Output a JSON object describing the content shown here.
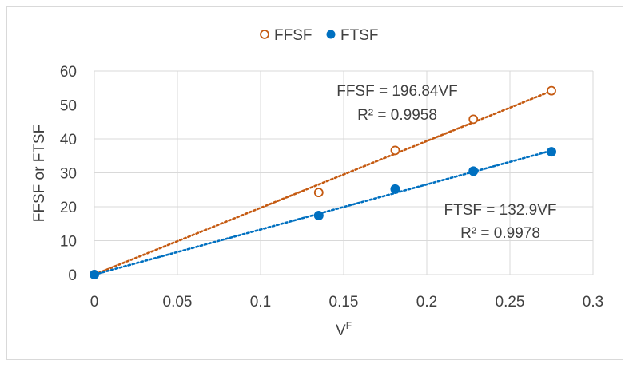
{
  "chart_data": {
    "type": "scatter",
    "title": "",
    "xlabel": "V",
    "xlabel_superscript": "F",
    "ylabel": "FFSF or FTSF",
    "xlim": [
      0,
      0.3
    ],
    "ylim": [
      0,
      60
    ],
    "x_ticks": [
      "0",
      "0.05",
      "0.1",
      "0.15",
      "0.2",
      "0.25",
      "0.3"
    ],
    "y_ticks": [
      "0",
      "10",
      "20",
      "30",
      "40",
      "50",
      "60"
    ],
    "grid": "vertical and horizontal",
    "legend_position": "top-center",
    "series": [
      {
        "name": "FFSF",
        "marker": "open-circle",
        "color": "#c55a11",
        "x": [
          0,
          0.135,
          0.181,
          0.228,
          0.275
        ],
        "y": [
          0,
          24.2,
          36.6,
          45.8,
          54.2
        ],
        "trendline": {
          "slope": 196.84,
          "equation": "FFSF = 196.84VF",
          "r2": "R² = 0.9958"
        }
      },
      {
        "name": "FTSF",
        "marker": "filled-circle",
        "color": "#0070c0",
        "x": [
          0,
          0.135,
          0.181,
          0.228,
          0.275
        ],
        "y": [
          0,
          17.4,
          25.2,
          30.5,
          36.2
        ],
        "trendline": {
          "slope": 132.9,
          "equation": "FTSF = 132.9VF",
          "r2": "R² = 0.9978"
        }
      }
    ]
  }
}
